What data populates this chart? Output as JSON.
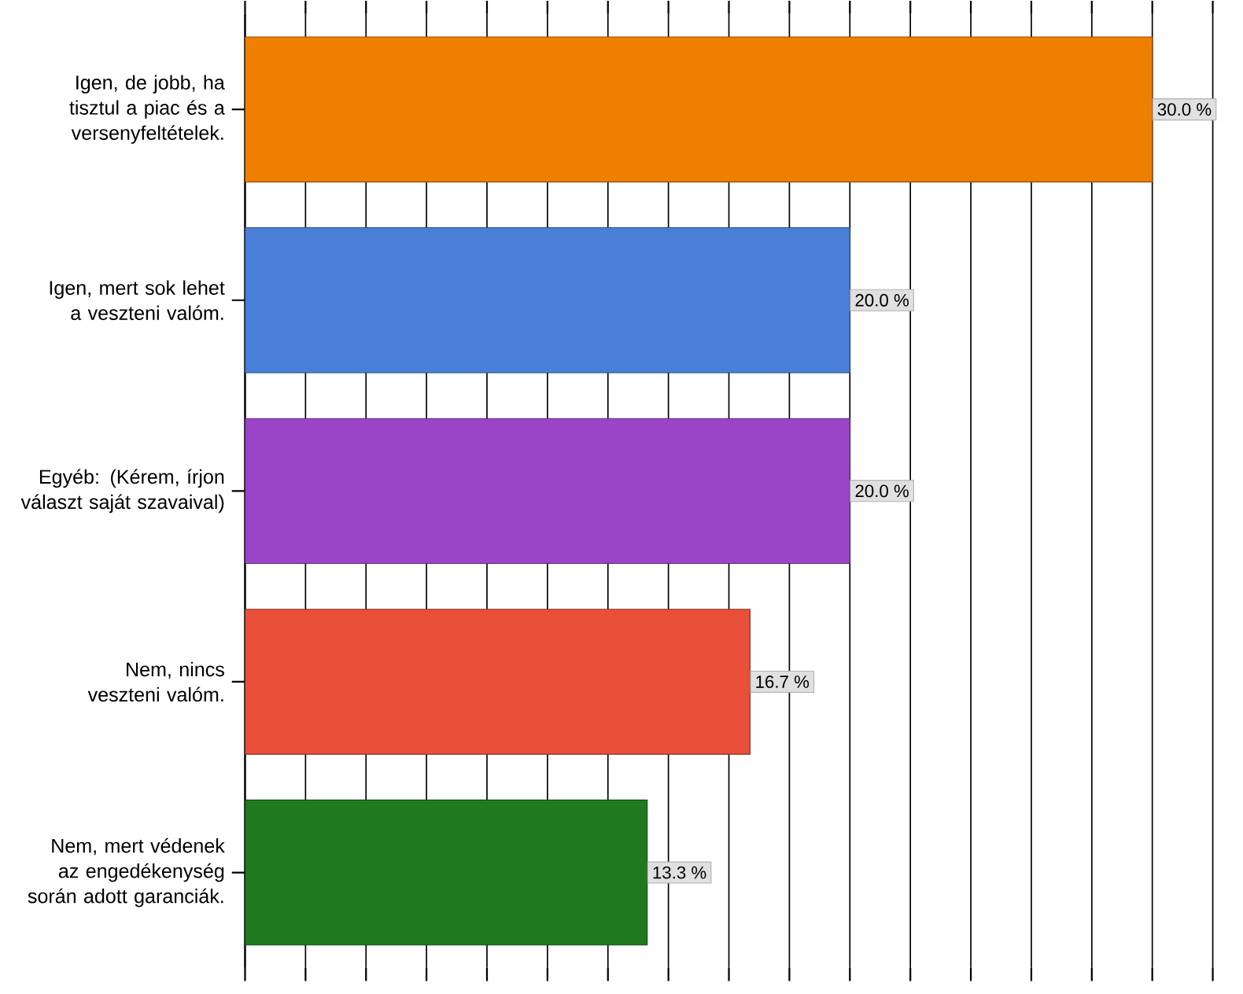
{
  "chart_data": {
    "type": "bar",
    "orientation": "horizontal",
    "categories": [
      "Igen, de jobb, ha tisztul a piac és a versenyfeltételek.",
      "Igen, mert sok lehet a veszteni valóm.",
      "Egyéb: (Kérem, írjon választ saját szavaival)",
      "Nem, nincs veszteni valóm.",
      "Nem, mert védenek az engedékenység során adott garanciák."
    ],
    "values": [
      30.0,
      20.0,
      20.0,
      16.7,
      13.3
    ],
    "colors": [
      "#f07f00",
      "#4a7fd8",
      "#9a44c8",
      "#e8503a",
      "#1f7a1f"
    ],
    "value_labels": [
      "30.0 %",
      "20.0 %",
      "20.0 %",
      "16.7 %",
      "13.3 %"
    ],
    "tick_labels": "y",
    "grid": "x"
  }
}
